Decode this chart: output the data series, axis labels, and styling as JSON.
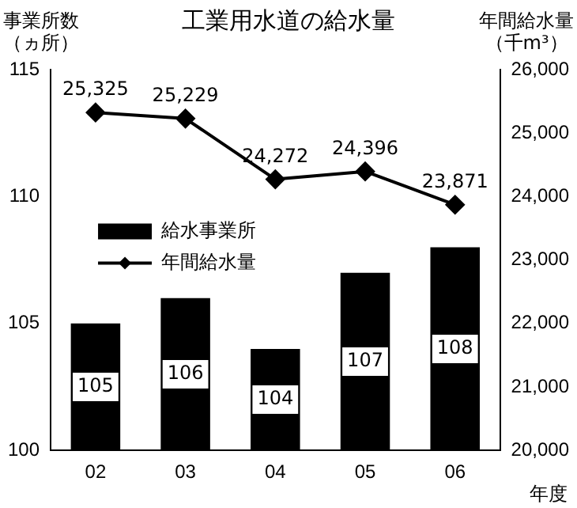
{
  "chart_data": {
    "type": "bar",
    "title": "工業用水道の給水量",
    "ylabel": "事業所数（ヵ所）",
    "y2label": "年間給水量（千m³）",
    "xlabel": "年度",
    "categories": [
      "02",
      "03",
      "04",
      "05",
      "06"
    ],
    "series": [
      {
        "name": "給水事業所",
        "color": "#000000",
        "values": [
          105,
          106,
          104,
          107,
          108
        ],
        "value_labels": [
          "105",
          "106",
          "104",
          "107",
          "108"
        ]
      },
      {
        "name": "年間給水量",
        "type": "line",
        "axis": "y2",
        "color": "#000000",
        "marker": "diamond",
        "values": [
          25325,
          25229,
          24272,
          24396,
          23871
        ],
        "value_labels": [
          "25,325",
          "25,229",
          "24,272",
          "24,396",
          "23,871"
        ]
      }
    ],
    "ylim": [
      100,
      115
    ],
    "yticks": [
      100,
      105,
      110,
      115
    ],
    "y2lim": [
      20000,
      26000
    ],
    "y2ticks": [
      {
        "value": 20000,
        "label": "20,000"
      },
      {
        "value": 21000,
        "label": "21,000"
      },
      {
        "value": 22000,
        "label": "22,000"
      },
      {
        "value": 23000,
        "label": "23,000"
      },
      {
        "value": 24000,
        "label": "24,000"
      },
      {
        "value": 25000,
        "label": "25,000"
      },
      {
        "value": 26000,
        "label": "26,000"
      }
    ],
    "grid": false,
    "legend": "left"
  }
}
